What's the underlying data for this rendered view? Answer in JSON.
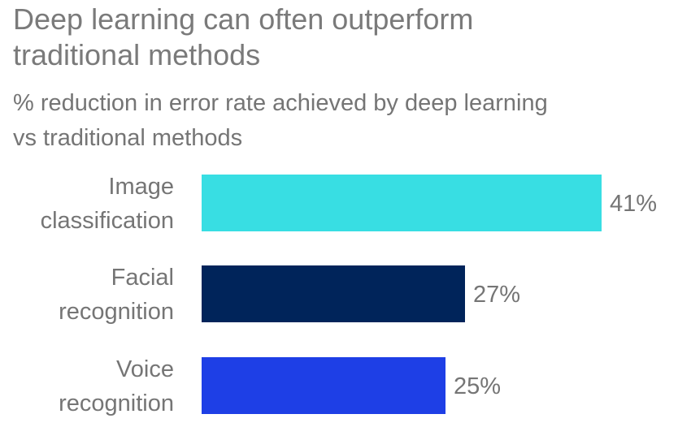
{
  "title_line1": "Deep learning can often outperform",
  "title_line2": "traditional methods",
  "subtitle_line1": "% reduction in error rate achieved by deep learning",
  "subtitle_line2": "vs traditional methods",
  "chart_data": {
    "type": "bar",
    "orientation": "horizontal",
    "categories": [
      [
        "Image",
        "classification"
      ],
      [
        "Facial",
        "recognition"
      ],
      [
        "Voice",
        "recognition"
      ]
    ],
    "values": [
      41,
      27,
      25
    ],
    "value_labels": [
      "41%",
      "27%",
      "25%"
    ],
    "colors": [
      "#38DEE3",
      "#00245A",
      "#1E3FE6"
    ],
    "xlim": [
      0,
      41
    ],
    "grid": false,
    "legend": "none"
  }
}
